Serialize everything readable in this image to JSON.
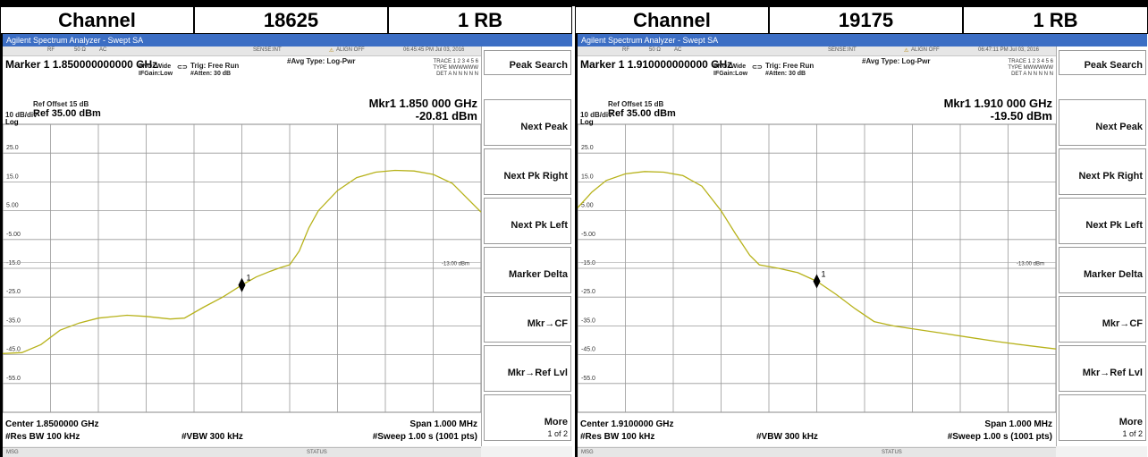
{
  "header": [
    {
      "left": 0,
      "width": 217,
      "label": "Channel"
    },
    {
      "left": 217,
      "width": 217,
      "label": "18625"
    },
    {
      "left": 434,
      "width": 206,
      "label": "1 RB"
    },
    {
      "left": 643,
      "width": 217,
      "label": "Channel"
    },
    {
      "left": 860,
      "width": 217,
      "label": "19175"
    },
    {
      "left": 1077,
      "width": 207,
      "label": "1 RB"
    }
  ],
  "panels": [
    {
      "title": "Agilent Spectrum Analyzer - Swept SA",
      "status": {
        "rf": "RF",
        "ohm": "50 Ω",
        "ac": "AC",
        "sense": "SENSE:INT",
        "align": "ALIGN OFF",
        "time": "06:45:45 PM Jul 03, 2016"
      },
      "marker_line": "Marker 1 1.850000000000 GHz",
      "pno": "PNO: Wide",
      "ifgain": "IFGain:Low",
      "trig": "Trig: Free Run",
      "atten": "#Atten: 30 dB",
      "avg": "#Avg Type: Log-Pwr",
      "trace": {
        "trace_label": "TRACE",
        "trace_nums": "1 2 3 4 5 6",
        "type_label": "TYPE",
        "type_val": "MWWWWW",
        "det_label": "DET",
        "det_val": "A N N N N N"
      },
      "ref_offset": "Ref Offset 15 dB",
      "ref": "Ref 35.00 dBm",
      "scale": "10 dB/div",
      "log": "Log",
      "mkr_freq": "Mkr1 1.850 000 GHz",
      "mkr_amp": "-20.81 dBm",
      "center": "Center 1.8500000 GHz",
      "res_bw": "#Res BW 100 kHz",
      "vbw": "#VBW 300 kHz",
      "span": "Span 1.000 MHz",
      "sweep": "#Sweep  1.00 s (1001 pts)",
      "msg": "MSG",
      "status_label": "STATUS",
      "softkeys": [
        {
          "label": "Peak Search",
          "sub": ""
        },
        {
          "label": "Next Peak",
          "sub": ""
        },
        {
          "label": "Next Pk Right",
          "sub": ""
        },
        {
          "label": "Next Pk Left",
          "sub": ""
        },
        {
          "label": "Marker Delta",
          "sub": ""
        },
        {
          "label": "Mkr→CF",
          "sub": ""
        },
        {
          "label": "Mkr→Ref Lvl",
          "sub": ""
        },
        {
          "label": "More",
          "sub": "1 of 2"
        }
      ],
      "limit_label": "-13.00 dBm",
      "marker_num": "1",
      "y_ticks": [
        "25.0",
        "15.0",
        "5.00",
        "-5.00",
        "-15.0",
        "-25.0",
        "-35.0",
        "-45.0",
        "-55.0"
      ],
      "trace_points": [
        [
          0,
          -44.6
        ],
        [
          0.04,
          -44.3
        ],
        [
          0.08,
          -41.5
        ],
        [
          0.12,
          -36.5
        ],
        [
          0.16,
          -34.0
        ],
        [
          0.2,
          -32.3
        ],
        [
          0.26,
          -31.3
        ],
        [
          0.3,
          -31.7
        ],
        [
          0.35,
          -32.6
        ],
        [
          0.38,
          -32.3
        ],
        [
          0.42,
          -28.5
        ],
        [
          0.46,
          -25.0
        ],
        [
          0.5,
          -20.81
        ],
        [
          0.53,
          -18.0
        ],
        [
          0.56,
          -16.0
        ],
        [
          0.58,
          -14.8
        ],
        [
          0.6,
          -13.8
        ],
        [
          0.62,
          -9
        ],
        [
          0.64,
          -1
        ],
        [
          0.66,
          5
        ],
        [
          0.7,
          12
        ],
        [
          0.74,
          16.5
        ],
        [
          0.78,
          18.4
        ],
        [
          0.82,
          19.0
        ],
        [
          0.86,
          18.8
        ],
        [
          0.9,
          17.6
        ],
        [
          0.94,
          14.5
        ],
        [
          0.97,
          9.5
        ],
        [
          1.0,
          4.5
        ]
      ],
      "mkr_x": 0.5
    },
    {
      "title": "Agilent Spectrum Analyzer - Swept SA",
      "status": {
        "rf": "RF",
        "ohm": "50 Ω",
        "ac": "AC",
        "sense": "SENSE:INT",
        "align": "ALIGN OFF",
        "time": "06:47:11 PM Jul 03, 2016"
      },
      "marker_line": "Marker 1 1.910000000000 GHz",
      "pno": "PNO: Wide",
      "ifgain": "IFGain:Low",
      "trig": "Trig: Free Run",
      "atten": "#Atten: 30 dB",
      "avg": "#Avg Type: Log-Pwr",
      "trace": {
        "trace_label": "TRACE",
        "trace_nums": "1 2 3 4 5 6",
        "type_label": "TYPE",
        "type_val": "MWWWWW",
        "det_label": "DET",
        "det_val": "A N N N N N"
      },
      "ref_offset": "Ref Offset 15 dB",
      "ref": "Ref 35.00 dBm",
      "scale": "10 dB/div",
      "log": "Log",
      "mkr_freq": "Mkr1 1.910 000 GHz",
      "mkr_amp": "-19.50 dBm",
      "center": "Center 1.9100000 GHz",
      "res_bw": "#Res BW 100 kHz",
      "vbw": "#VBW 300 kHz",
      "span": "Span 1.000 MHz",
      "sweep": "#Sweep  1.00 s (1001 pts)",
      "msg": "MSG",
      "status_label": "STATUS",
      "softkeys": [
        {
          "label": "Peak Search",
          "sub": ""
        },
        {
          "label": "Next Peak",
          "sub": ""
        },
        {
          "label": "Next Pk Right",
          "sub": ""
        },
        {
          "label": "Next Pk Left",
          "sub": ""
        },
        {
          "label": "Marker Delta",
          "sub": ""
        },
        {
          "label": "Mkr→CF",
          "sub": ""
        },
        {
          "label": "Mkr→Ref Lvl",
          "sub": ""
        },
        {
          "label": "More",
          "sub": "1 of 2"
        }
      ],
      "limit_label": "-13.00 dBm",
      "marker_num": "1",
      "y_ticks": [
        "25.0",
        "15.0",
        "5.00",
        "-5.00",
        "-15.0",
        "-25.0",
        "-35.0",
        "-45.0",
        "-55.0"
      ],
      "trace_points": [
        [
          0,
          6
        ],
        [
          0.03,
          11.5
        ],
        [
          0.06,
          15.5
        ],
        [
          0.1,
          17.8
        ],
        [
          0.14,
          18.6
        ],
        [
          0.18,
          18.4
        ],
        [
          0.22,
          17.2
        ],
        [
          0.26,
          13.5
        ],
        [
          0.3,
          5
        ],
        [
          0.33,
          -3
        ],
        [
          0.36,
          -10.5
        ],
        [
          0.38,
          -13.8
        ],
        [
          0.42,
          -15.0
        ],
        [
          0.46,
          -16.5
        ],
        [
          0.5,
          -19.5
        ],
        [
          0.54,
          -24
        ],
        [
          0.58,
          -29
        ],
        [
          0.62,
          -33.5
        ],
        [
          0.66,
          -35
        ],
        [
          0.7,
          -36
        ],
        [
          0.76,
          -37.5
        ],
        [
          0.82,
          -39
        ],
        [
          0.88,
          -40.5
        ],
        [
          0.94,
          -41.8
        ],
        [
          1.0,
          -43.0
        ]
      ],
      "mkr_x": 0.5
    }
  ]
}
